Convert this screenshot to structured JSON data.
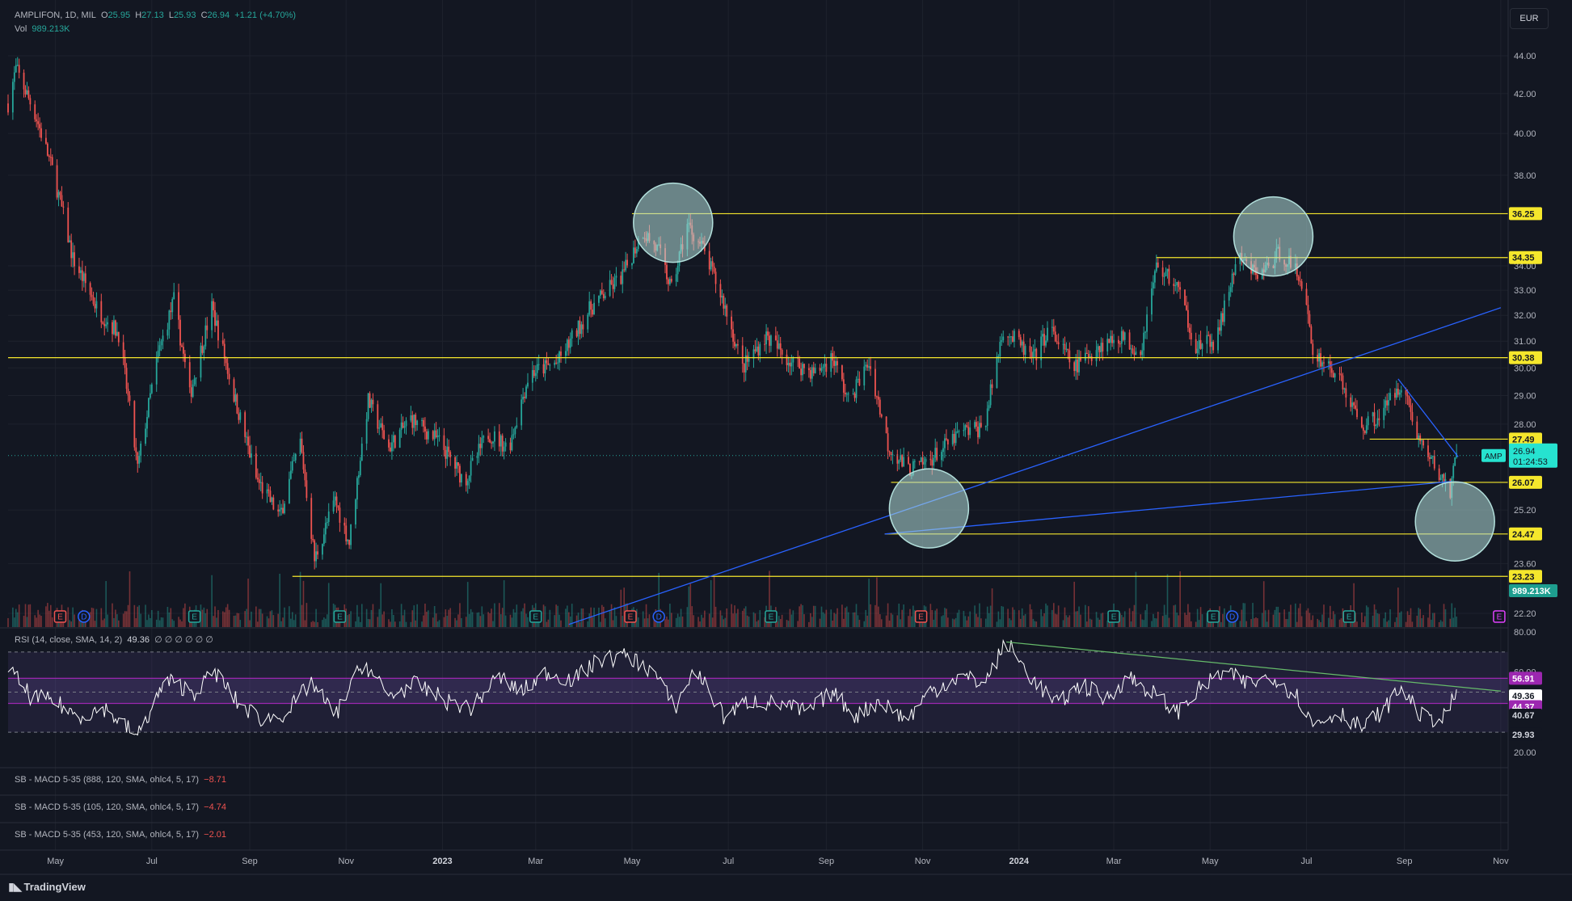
{
  "legend": {
    "symbol": "AMPLIFON, 1D, MIL",
    "o_label": "O",
    "o": "25.95",
    "h_label": "H",
    "h": "27.13",
    "l_label": "L",
    "l": "25.93",
    "c_label": "C",
    "c": "26.94",
    "change": "+1.21 (+4.70%)",
    "vol_label": "Vol",
    "vol": "989.213K"
  },
  "currency": "EUR",
  "rsi_legend": {
    "label": "RSI (14, close, SMA, 14, 2)",
    "value": "49.36",
    "extras": "∅ ∅ ∅ ∅ ∅ ∅"
  },
  "macd_panels": [
    {
      "label": "SB - MACD 5-35 (888, 120, SMA, ohlc4, 5, 17)",
      "value": "−8.71"
    },
    {
      "label": "SB - MACD 5-35 (105, 120, SMA, ohlc4, 5, 17)",
      "value": "−4.74"
    },
    {
      "label": "SB - MACD 5-35 (453, 120, SMA, ohlc4, 5, 17)",
      "value": "−2.01"
    }
  ],
  "brand": "TradingView",
  "colors": {
    "bg": "#131722",
    "up": "#26a69a",
    "down": "#ef5350",
    "level": "#f5e72c",
    "trend": "#2962ff",
    "rsi_line": "#ffffff",
    "rsi_band": "#7e57c2",
    "price_tag": "#26e3d0"
  },
  "chart_data": {
    "type": "candlestick",
    "symbol": "AMPLIFON",
    "ylim": [
      21.8,
      45.2
    ],
    "price_axis_ticks": [
      "44.00",
      "42.00",
      "40.00",
      "38.00",
      "34.00",
      "33.00",
      "32.00",
      "31.00",
      "30.00",
      "29.00",
      "28.00",
      "25.20",
      "23.60",
      "22.20"
    ],
    "x_ticks": [
      "May",
      "Jul",
      "Sep",
      "Nov",
      "2023",
      "Mar",
      "May",
      "Jul",
      "Sep",
      "Nov",
      "2024",
      "Mar",
      "May",
      "Jul",
      "Sep",
      "Nov"
    ],
    "price_path": [
      {
        "x": "2022-04-01",
        "y": 41.5
      },
      {
        "x": "2022-04-06",
        "y": 43.3
      },
      {
        "x": "2022-04-18",
        "y": 41.0
      },
      {
        "x": "2022-04-30",
        "y": 38.0
      },
      {
        "x": "2022-05-12",
        "y": 34.3
      },
      {
        "x": "2022-05-28",
        "y": 32.2
      },
      {
        "x": "2022-06-10",
        "y": 31.3
      },
      {
        "x": "2022-06-22",
        "y": 26.5
      },
      {
        "x": "2022-07-05",
        "y": 30.5
      },
      {
        "x": "2022-07-15",
        "y": 32.6
      },
      {
        "x": "2022-07-25",
        "y": 29.0
      },
      {
        "x": "2022-08-08",
        "y": 32.3
      },
      {
        "x": "2022-08-22",
        "y": 29.0
      },
      {
        "x": "2022-09-05",
        "y": 26.2
      },
      {
        "x": "2022-09-20",
        "y": 25.0
      },
      {
        "x": "2022-10-03",
        "y": 27.4
      },
      {
        "x": "2022-10-12",
        "y": 23.7
      },
      {
        "x": "2022-10-25",
        "y": 25.5
      },
      {
        "x": "2022-11-03",
        "y": 24.2
      },
      {
        "x": "2022-11-15",
        "y": 28.8
      },
      {
        "x": "2022-11-28",
        "y": 27.2
      },
      {
        "x": "2022-12-12",
        "y": 28.2
      },
      {
        "x": "2022-12-30",
        "y": 27.4
      },
      {
        "x": "2023-01-15",
        "y": 26.1
      },
      {
        "x": "2023-01-30",
        "y": 27.7
      },
      {
        "x": "2023-02-12",
        "y": 27.2
      },
      {
        "x": "2023-02-25",
        "y": 29.8
      },
      {
        "x": "2023-03-15",
        "y": 30.2
      },
      {
        "x": "2023-04-05",
        "y": 32.3
      },
      {
        "x": "2023-04-25",
        "y": 33.6
      },
      {
        "x": "2023-05-08",
        "y": 35.5
      },
      {
        "x": "2023-05-18",
        "y": 34.6
      },
      {
        "x": "2023-05-26",
        "y": 33.0
      },
      {
        "x": "2023-06-05",
        "y": 35.8
      },
      {
        "x": "2023-06-15",
        "y": 34.7
      },
      {
        "x": "2023-06-28",
        "y": 32.5
      },
      {
        "x": "2023-07-10",
        "y": 30.0
      },
      {
        "x": "2023-07-25",
        "y": 31.2
      },
      {
        "x": "2023-08-08",
        "y": 30.3
      },
      {
        "x": "2023-08-25",
        "y": 29.8
      },
      {
        "x": "2023-09-05",
        "y": 30.4
      },
      {
        "x": "2023-09-15",
        "y": 28.8
      },
      {
        "x": "2023-09-28",
        "y": 30.2
      },
      {
        "x": "2023-10-10",
        "y": 27.3
      },
      {
        "x": "2023-10-22",
        "y": 26.5
      },
      {
        "x": "2023-10-31",
        "y": 26.6
      },
      {
        "x": "2023-11-10",
        "y": 27.0
      },
      {
        "x": "2023-11-25",
        "y": 27.7
      },
      {
        "x": "2023-12-10",
        "y": 27.9
      },
      {
        "x": "2023-12-22",
        "y": 31.5
      },
      {
        "x": "2024-01-10",
        "y": 30.3
      },
      {
        "x": "2024-01-20",
        "y": 31.5
      },
      {
        "x": "2024-02-05",
        "y": 30.0
      },
      {
        "x": "2024-02-20",
        "y": 30.8
      },
      {
        "x": "2024-03-05",
        "y": 31.2
      },
      {
        "x": "2024-03-18",
        "y": 30.6
      },
      {
        "x": "2024-03-28",
        "y": 34.0
      },
      {
        "x": "2024-04-10",
        "y": 33.2
      },
      {
        "x": "2024-04-22",
        "y": 30.8
      },
      {
        "x": "2024-05-05",
        "y": 31.0
      },
      {
        "x": "2024-05-18",
        "y": 34.3
      },
      {
        "x": "2024-06-01",
        "y": 33.6
      },
      {
        "x": "2024-06-15",
        "y": 34.6
      },
      {
        "x": "2024-06-28",
        "y": 33.4
      },
      {
        "x": "2024-07-05",
        "y": 30.6
      },
      {
        "x": "2024-07-20",
        "y": 29.8
      },
      {
        "x": "2024-08-05",
        "y": 27.9
      },
      {
        "x": "2024-08-18",
        "y": 28.4
      },
      {
        "x": "2024-08-30",
        "y": 29.5
      },
      {
        "x": "2024-09-10",
        "y": 27.5
      },
      {
        "x": "2024-09-22",
        "y": 26.4
      },
      {
        "x": "2024-09-30",
        "y": 25.8
      },
      {
        "x": "2024-10-04",
        "y": 26.94
      }
    ],
    "horizontal_levels": [
      {
        "value": 36.25,
        "label": "36.25",
        "from": "2023-05-01"
      },
      {
        "value": 34.35,
        "label": "34.35",
        "from": "2024-03-28"
      },
      {
        "value": 30.38,
        "label": "30.38",
        "from": "2022-04-01"
      },
      {
        "value": 27.49,
        "label": "27.49",
        "from": "2024-08-10"
      },
      {
        "value": 26.07,
        "label": "26.07",
        "from": "2023-10-12"
      },
      {
        "value": 24.47,
        "label": "24.47",
        "from": "2023-10-08"
      },
      {
        "value": 23.23,
        "label": "23.23",
        "from": "2022-09-28"
      }
    ],
    "trendlines": [
      {
        "from": {
          "x": "2023-03-22",
          "y": 21.9
        },
        "to": {
          "x": "2024-11-01",
          "y": 32.3
        }
      },
      {
        "from": {
          "x": "2023-10-08",
          "y": 24.47
        },
        "to": {
          "x": "2024-10-01",
          "y": 26.1
        }
      },
      {
        "from": {
          "x": "2024-08-28",
          "y": 29.6
        },
        "to": {
          "x": "2024-10-05",
          "y": 26.9
        }
      }
    ],
    "circles": [
      {
        "x": "2023-05-27",
        "y": 35.85
      },
      {
        "x": "2024-06-10",
        "y": 35.25
      },
      {
        "x": "2023-11-05",
        "y": 25.25
      },
      {
        "x": "2024-10-03",
        "y": 24.85
      }
    ],
    "last_price": {
      "value": 26.94,
      "label": "26.94",
      "symbol": "AMP",
      "countdown": "01:24:53"
    },
    "volume_tag": "989.213K",
    "event_markers": [
      {
        "x": "2022-05-04",
        "kind": "E",
        "color": "down"
      },
      {
        "x": "2022-05-19",
        "kind": "D",
        "color": "trend"
      },
      {
        "x": "2022-07-28",
        "kind": "E",
        "color": "up"
      },
      {
        "x": "2022-10-28",
        "kind": "E",
        "color": "up"
      },
      {
        "x": "2023-03-01",
        "kind": "E",
        "color": "up"
      },
      {
        "x": "2023-04-30",
        "kind": "E",
        "color": "down"
      },
      {
        "x": "2023-05-18",
        "kind": "D",
        "color": "trend"
      },
      {
        "x": "2023-07-28",
        "kind": "E",
        "color": "up"
      },
      {
        "x": "2023-10-31",
        "kind": "E",
        "color": "down"
      },
      {
        "x": "2024-03-01",
        "kind": "E",
        "color": "up"
      },
      {
        "x": "2024-05-03",
        "kind": "E",
        "color": "up"
      },
      {
        "x": "2024-05-15",
        "kind": "D",
        "color": "trend"
      },
      {
        "x": "2024-07-28",
        "kind": "E",
        "color": "up"
      },
      {
        "x": "2024-10-31",
        "kind": "E",
        "color": "future"
      }
    ],
    "rsi": {
      "ylim": [
        16,
        82
      ],
      "axis_ticks": [
        "80.00",
        "60.00",
        "20.00"
      ],
      "upper_band": 70,
      "lower_band": 30,
      "upper_ma_band": 56.91,
      "lower_ma_band": 44.37,
      "value_tags": [
        "56.91",
        "49.36",
        "44.37",
        "40.67",
        "29.93"
      ],
      "path": [
        {
          "x": "2022-04-01",
          "y": 62
        },
        {
          "x": "2022-04-15",
          "y": 48
        },
        {
          "x": "2022-05-01",
          "y": 45
        },
        {
          "x": "2022-05-15",
          "y": 38
        },
        {
          "x": "2022-06-01",
          "y": 42
        },
        {
          "x": "2022-06-22",
          "y": 28
        },
        {
          "x": "2022-07-10",
          "y": 56
        },
        {
          "x": "2022-07-28",
          "y": 50
        },
        {
          "x": "2022-08-10",
          "y": 60
        },
        {
          "x": "2022-08-25",
          "y": 44
        },
        {
          "x": "2022-09-10",
          "y": 36
        },
        {
          "x": "2022-09-25",
          "y": 40
        },
        {
          "x": "2022-10-10",
          "y": 55
        },
        {
          "x": "2022-10-25",
          "y": 38
        },
        {
          "x": "2022-11-12",
          "y": 65
        },
        {
          "x": "2022-11-28",
          "y": 48
        },
        {
          "x": "2022-12-15",
          "y": 54
        },
        {
          "x": "2023-01-05",
          "y": 45
        },
        {
          "x": "2023-01-20",
          "y": 42
        },
        {
          "x": "2023-02-05",
          "y": 58
        },
        {
          "x": "2023-02-20",
          "y": 50
        },
        {
          "x": "2023-03-08",
          "y": 60
        },
        {
          "x": "2023-03-25",
          "y": 56
        },
        {
          "x": "2023-04-10",
          "y": 66
        },
        {
          "x": "2023-04-28",
          "y": 68
        },
        {
          "x": "2023-05-15",
          "y": 60
        },
        {
          "x": "2023-05-28",
          "y": 42
        },
        {
          "x": "2023-06-10",
          "y": 62
        },
        {
          "x": "2023-06-28",
          "y": 38
        },
        {
          "x": "2023-07-15",
          "y": 46
        },
        {
          "x": "2023-08-01",
          "y": 44
        },
        {
          "x": "2023-08-20",
          "y": 40
        },
        {
          "x": "2023-09-05",
          "y": 50
        },
        {
          "x": "2023-09-20",
          "y": 38
        },
        {
          "x": "2023-10-05",
          "y": 46
        },
        {
          "x": "2023-10-22",
          "y": 36
        },
        {
          "x": "2023-11-05",
          "y": 50
        },
        {
          "x": "2023-11-25",
          "y": 58
        },
        {
          "x": "2023-12-10",
          "y": 54
        },
        {
          "x": "2023-12-24",
          "y": 75
        },
        {
          "x": "2024-01-10",
          "y": 56
        },
        {
          "x": "2024-01-25",
          "y": 44
        },
        {
          "x": "2024-02-10",
          "y": 54
        },
        {
          "x": "2024-02-25",
          "y": 46
        },
        {
          "x": "2024-03-10",
          "y": 58
        },
        {
          "x": "2024-03-25",
          "y": 50
        },
        {
          "x": "2024-04-10",
          "y": 40
        },
        {
          "x": "2024-04-25",
          "y": 52
        },
        {
          "x": "2024-05-10",
          "y": 60
        },
        {
          "x": "2024-05-25",
          "y": 54
        },
        {
          "x": "2024-06-10",
          "y": 58
        },
        {
          "x": "2024-06-25",
          "y": 48
        },
        {
          "x": "2024-07-05",
          "y": 34
        },
        {
          "x": "2024-07-22",
          "y": 40
        },
        {
          "x": "2024-08-05",
          "y": 32
        },
        {
          "x": "2024-08-20",
          "y": 42
        },
        {
          "x": "2024-08-30",
          "y": 52
        },
        {
          "x": "2024-09-12",
          "y": 38
        },
        {
          "x": "2024-09-25",
          "y": 36
        },
        {
          "x": "2024-10-04",
          "y": 49.36
        }
      ],
      "trendline": {
        "from": {
          "x": "2023-12-24",
          "y": 75
        },
        "to": {
          "x": "2024-11-01",
          "y": 50.5
        }
      }
    }
  }
}
